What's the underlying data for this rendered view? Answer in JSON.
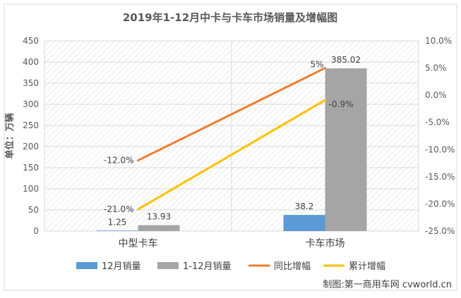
{
  "chart_data": {
    "type": "bar",
    "title": "2019年1-12月中卡与卡车市场销量及增幅图",
    "ylabel": "单位：万辆",
    "categories": [
      "中型卡车",
      "卡车市场"
    ],
    "ylim": [
      0,
      450
    ],
    "yticks": [
      0,
      50,
      100,
      150,
      200,
      250,
      300,
      350,
      400,
      450
    ],
    "y2lim": [
      -25,
      10
    ],
    "y2ticks": [
      "-25.0%",
      "-20.0%",
      "-15.0%",
      "-10.0%",
      "-5.0%",
      "0.0%",
      "5.0%",
      "10.0%"
    ],
    "y2tick_values": [
      -25,
      -20,
      -15,
      -10,
      -5,
      0,
      5,
      10
    ],
    "bar_series": [
      {
        "name": "12月销量",
        "color": "#5b9bd5",
        "values": [
          1.25,
          38.2
        ],
        "labels": [
          "1.25",
          "38.2"
        ]
      },
      {
        "name": "1-12月销量",
        "color": "#a5a5a5",
        "values": [
          13.93,
          385.02
        ],
        "labels": [
          "13.93",
          "385.02"
        ]
      }
    ],
    "line_series": [
      {
        "name": "同比增幅",
        "color": "#ed7d31",
        "values": [
          -12.0,
          5.0
        ],
        "labels": [
          "-12.0%",
          "5%"
        ]
      },
      {
        "name": "累计增幅",
        "color": "#ffc000",
        "values": [
          -21.0,
          -0.9
        ],
        "labels": [
          "-21.0%",
          "-0.9%"
        ]
      }
    ],
    "grid": true,
    "legend_position": "bottom"
  },
  "footer": {
    "credit": "制图:第一商用车网 cvworld.cn"
  }
}
